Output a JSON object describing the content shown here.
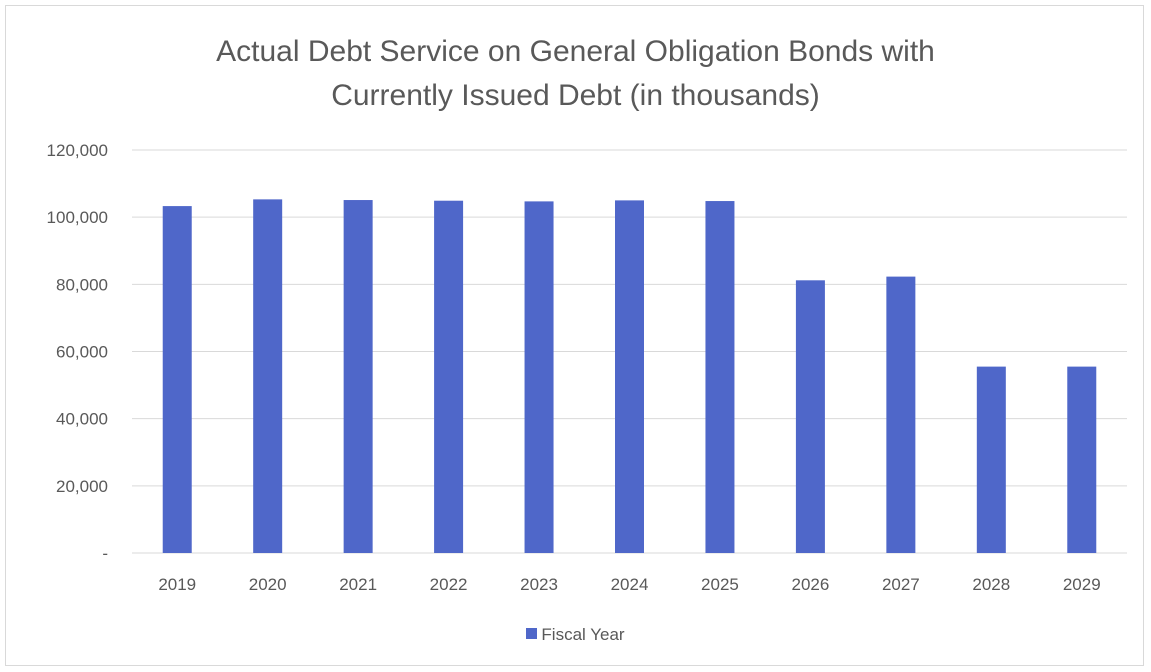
{
  "chart_data": {
    "type": "bar",
    "title": "Actual Debt Service on General Obligation Bonds with Currently Issued Debt (in thousands)",
    "title_lines": [
      "Actual Debt Service on General Obligation Bonds with",
      "Currently Issued Debt (in thousands)"
    ],
    "categories": [
      "2019",
      "2020",
      "2021",
      "2022",
      "2023",
      "2024",
      "2025",
      "2026",
      "2027",
      "2028",
      "2029"
    ],
    "series": [
      {
        "name": "Fiscal Year",
        "values": [
          103300,
          105300,
          105100,
          104900,
          104700,
          105000,
          104800,
          81200,
          82300,
          55500,
          55500
        ]
      }
    ],
    "ylim": [
      0,
      120000
    ],
    "yticks": [
      0,
      20000,
      40000,
      60000,
      80000,
      100000,
      120000
    ],
    "ytick_labels": [
      "-",
      "20,000",
      "40,000",
      "60,000",
      "80,000",
      "100,000",
      "120,000"
    ],
    "grid": true,
    "legend_position": "bottom",
    "bar_color": "#4f67c9"
  }
}
